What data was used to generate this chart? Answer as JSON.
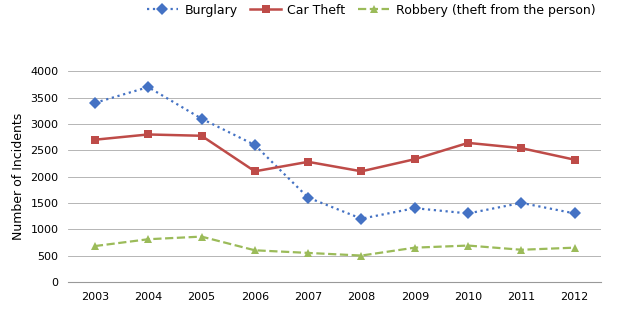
{
  "years": [
    2003,
    2004,
    2005,
    2006,
    2007,
    2008,
    2009,
    2010,
    2011,
    2012
  ],
  "burglary": [
    3400,
    3700,
    3100,
    2600,
    1600,
    1200,
    1400,
    1300,
    1500,
    1300
  ],
  "car_theft": [
    2700,
    2800,
    2775,
    2100,
    2280,
    2100,
    2330,
    2640,
    2540,
    2320
  ],
  "robbery": [
    680,
    810,
    860,
    600,
    550,
    500,
    650,
    690,
    610,
    650
  ],
  "burglary_color": "#4472C4",
  "car_theft_color": "#BE4B48",
  "robbery_color": "#9BBB59",
  "burglary_label": "Burglary",
  "car_theft_label": "Car Theft",
  "robbery_label": "Robbery (theft from the person)",
  "ylabel": "Number of Incidents",
  "ylim": [
    0,
    4000
  ],
  "yticks": [
    0,
    500,
    1000,
    1500,
    2000,
    2500,
    3000,
    3500,
    4000
  ],
  "background_color": "#FFFFFF",
  "grid_color": "#AAAAAA",
  "tick_fontsize": 8,
  "label_fontsize": 9,
  "legend_fontsize": 9
}
